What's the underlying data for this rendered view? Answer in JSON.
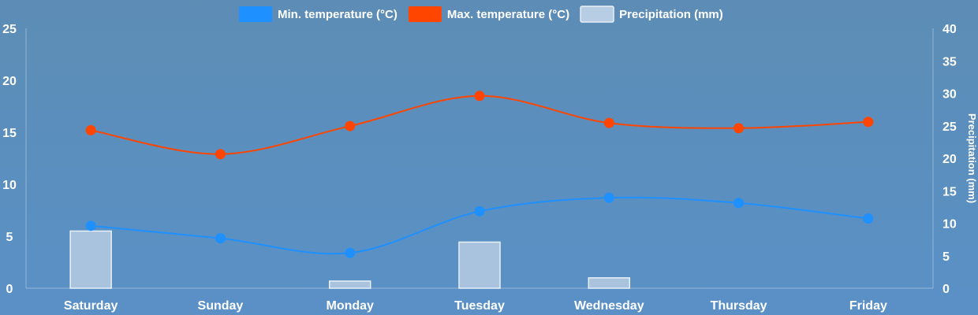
{
  "chart_data": {
    "type": "bar+line",
    "categories": [
      "Saturday",
      "Sunday",
      "Monday",
      "Tuesday",
      "Wednesday",
      "Thursday",
      "Friday"
    ],
    "series": [
      {
        "name": "Min. temperature (°C)",
        "type": "line",
        "axis": "left",
        "color": "#1e90ff",
        "values": [
          6.0,
          4.8,
          3.4,
          7.4,
          8.7,
          8.2,
          6.7
        ]
      },
      {
        "name": "Max. temperature (°C)",
        "type": "line",
        "axis": "left",
        "color": "#ff4500",
        "values": [
          15.2,
          12.9,
          15.6,
          18.5,
          15.9,
          15.4,
          16.0
        ]
      },
      {
        "name": "Precipitation (mm)",
        "type": "bar",
        "axis": "right",
        "color": "#b7cde3",
        "values": [
          8.8,
          0,
          1.1,
          7.1,
          1.6,
          0,
          0
        ]
      }
    ],
    "y_left": {
      "min": 0,
      "max": 25,
      "ticks": [
        "0",
        "5",
        "10",
        "15",
        "20",
        "25"
      ],
      "label": ""
    },
    "y_right": {
      "min": 0,
      "max": 40,
      "ticks": [
        "0",
        "5",
        "10",
        "15",
        "20",
        "25",
        "30",
        "35",
        "40"
      ],
      "label": "Precipitation (mm)"
    },
    "legend_position": "top-center",
    "grid": false
  }
}
